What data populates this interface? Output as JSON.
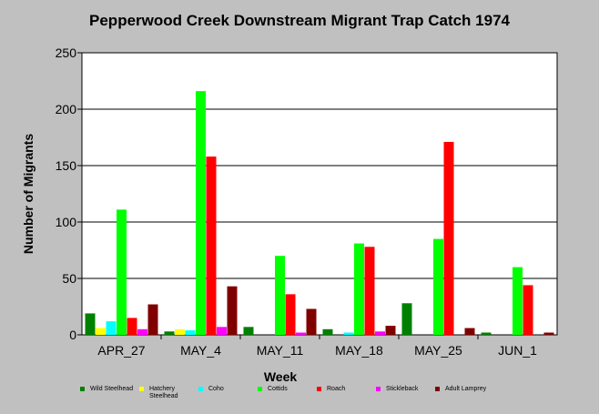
{
  "chart_data": {
    "type": "bar",
    "title": "Pepperwood Creek Downstream Migrant Trap Catch 1974",
    "xlabel": "Week",
    "ylabel": "Number of Migrants",
    "ylim": [
      0,
      250
    ],
    "yticks": [
      0,
      50,
      100,
      150,
      200,
      250
    ],
    "grid": true,
    "legend_position": "bottom",
    "categories": [
      "APR_27",
      "MAY_4",
      "MAY_11",
      "MAY_18",
      "MAY_25",
      "JUN_1"
    ],
    "series": [
      {
        "name": "Wild Steelhead",
        "color": "#008000",
        "values": [
          19,
          3,
          7,
          5,
          28,
          2
        ]
      },
      {
        "name": "Hatchery Steelhead",
        "color": "#ffff00",
        "values": [
          6,
          5,
          0,
          0,
          0,
          0
        ]
      },
      {
        "name": "Coho",
        "color": "#00ffff",
        "values": [
          12,
          4,
          0,
          2,
          0,
          0
        ]
      },
      {
        "name": "Cottids",
        "color": "#00ff00",
        "values": [
          111,
          216,
          70,
          81,
          85,
          60
        ]
      },
      {
        "name": "Roach",
        "color": "#ff0000",
        "values": [
          15,
          158,
          36,
          78,
          171,
          44
        ]
      },
      {
        "name": "Stickleback",
        "color": "#ff00ff",
        "values": [
          5,
          7,
          2,
          3,
          0,
          0
        ]
      },
      {
        "name": "Adult Lamprey",
        "color": "#800000",
        "values": [
          27,
          43,
          23,
          8,
          6,
          2
        ]
      }
    ]
  }
}
